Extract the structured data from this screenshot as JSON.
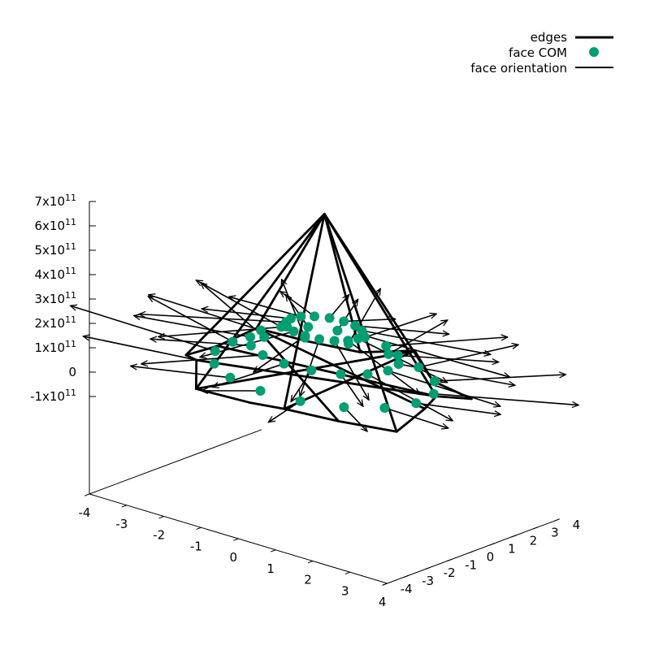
{
  "chart_data": {
    "type": "scatter",
    "projection": "3d",
    "title": "",
    "xlabel": "",
    "ylabel": "",
    "zlabel": "",
    "xlim": [
      -4,
      4
    ],
    "ylim": [
      -4,
      4
    ],
    "zlim": [
      -100000000000,
      700000000000
    ],
    "x_ticks": [
      "-4",
      "-3",
      "-2",
      "-1",
      "0",
      "1",
      "2",
      "3",
      "4"
    ],
    "y_ticks": [
      "-4",
      "-3",
      "-2",
      "-1",
      "0",
      "1",
      "2",
      "3",
      "4"
    ],
    "z_ticks": [
      {
        "value": 700000000000,
        "mantissa": "7x10",
        "exp": "11"
      },
      {
        "value": 600000000000,
        "mantissa": "6x10",
        "exp": "11"
      },
      {
        "value": 500000000000,
        "mantissa": "5x10",
        "exp": "11"
      },
      {
        "value": 400000000000,
        "mantissa": "4x10",
        "exp": "11"
      },
      {
        "value": 300000000000,
        "mantissa": "3x10",
        "exp": "11"
      },
      {
        "value": 200000000000,
        "mantissa": "2x10",
        "exp": "11"
      },
      {
        "value": 100000000000,
        "mantissa": "1x10",
        "exp": "11"
      },
      {
        "value": 0,
        "mantissa": "0",
        "exp": ""
      },
      {
        "value": -100000000000,
        "mantissa": "-1x10",
        "exp": "11"
      }
    ],
    "grid": false,
    "legend_position": "top-right",
    "legend": [
      {
        "name": "edges",
        "style": "thick-line",
        "color": "#000000"
      },
      {
        "name": "face COM",
        "style": "point",
        "color": "#009e73"
      },
      {
        "name": "face orientation",
        "style": "thin-line",
        "color": "#000000"
      }
    ],
    "geometry": {
      "apex": [
        0,
        0,
        700000000000
      ],
      "base_ring_count": 16,
      "base_radius": 3,
      "base_z": 0,
      "face_com_count": 48
    }
  }
}
